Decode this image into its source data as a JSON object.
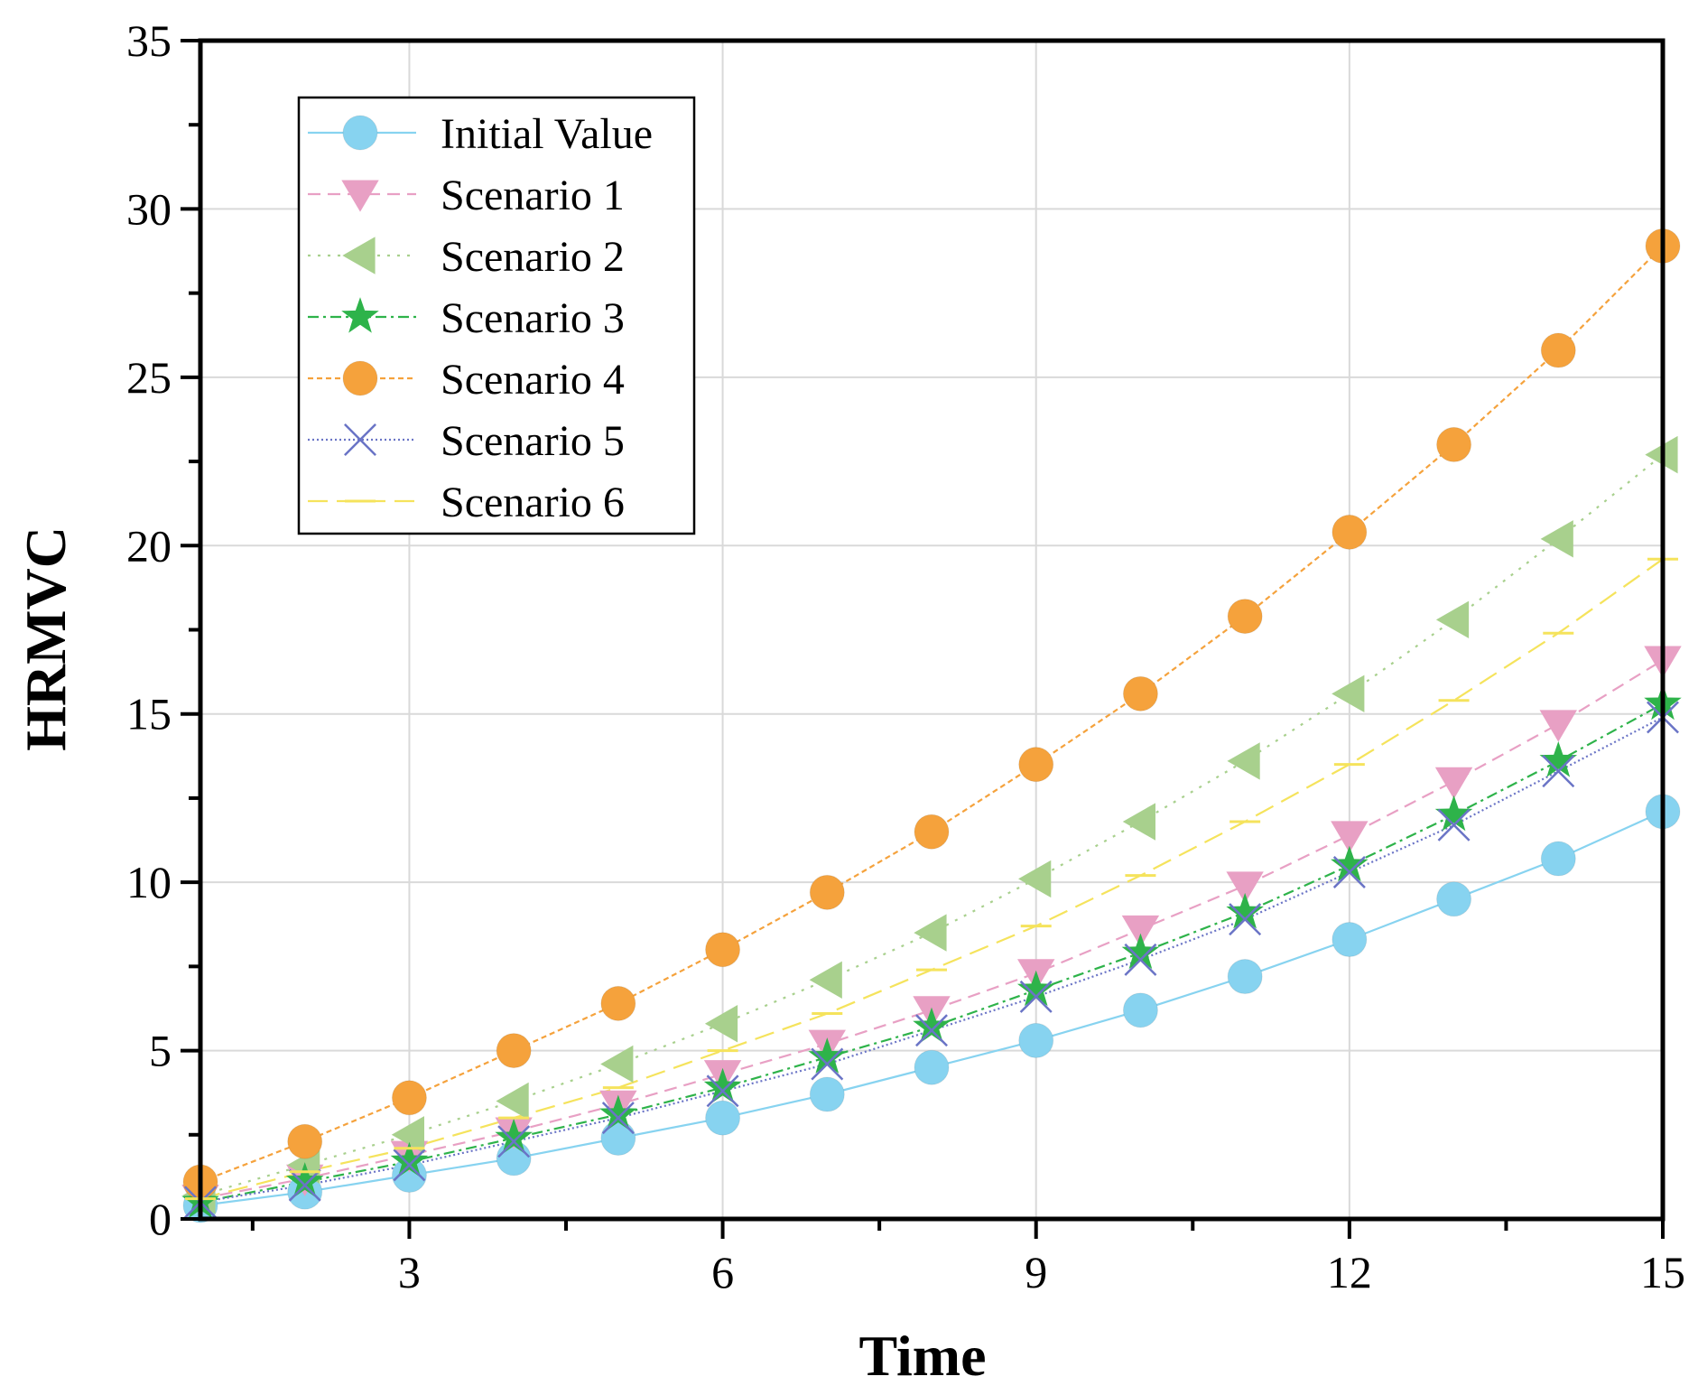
{
  "chart_data": {
    "type": "line",
    "title": "",
    "xlabel": "Time",
    "ylabel": "HRMVC",
    "xlim": [
      1,
      15
    ],
    "ylim": [
      0,
      35
    ],
    "xticks": [
      3,
      6,
      9,
      12,
      15
    ],
    "yticks": [
      0,
      5,
      10,
      15,
      20,
      25,
      30,
      35
    ],
    "grid": true,
    "legend_position": "top-left",
    "x": [
      1,
      2,
      3,
      4,
      5,
      6,
      7,
      8,
      9,
      10,
      11,
      12,
      13,
      14,
      15
    ],
    "series": [
      {
        "name": "Initial Value",
        "color": "#87d3f0",
        "marker": "circle",
        "line_style": "solid",
        "values": [
          0.4,
          0.8,
          1.3,
          1.8,
          2.4,
          3.0,
          3.7,
          4.5,
          5.3,
          6.2,
          7.2,
          8.3,
          9.5,
          10.7,
          12.1
        ]
      },
      {
        "name": "Scenario 1",
        "color": "#e8a0c4",
        "marker": "triangle-down",
        "line_style": "dashed",
        "values": [
          0.6,
          1.2,
          1.9,
          2.6,
          3.4,
          4.3,
          5.2,
          6.2,
          7.3,
          8.6,
          9.9,
          11.4,
          13.0,
          14.7,
          16.6
        ]
      },
      {
        "name": "Scenario 2",
        "color": "#a8d08d",
        "marker": "triangle-left",
        "line_style": "dotted",
        "values": [
          0.7,
          1.6,
          2.5,
          3.5,
          4.6,
          5.8,
          7.1,
          8.5,
          10.1,
          11.8,
          13.6,
          15.6,
          17.8,
          20.2,
          22.7
        ]
      },
      {
        "name": "Scenario 3",
        "color": "#2eb34a",
        "marker": "star",
        "line_style": "dashdot",
        "values": [
          0.5,
          1.1,
          1.7,
          2.4,
          3.1,
          3.9,
          4.8,
          5.7,
          6.8,
          7.9,
          9.1,
          10.5,
          12.0,
          13.6,
          15.3
        ]
      },
      {
        "name": "Scenario 4",
        "color": "#f5a23c",
        "marker": "circle",
        "line_style": "short-dash",
        "values": [
          1.1,
          2.3,
          3.6,
          5.0,
          6.4,
          8.0,
          9.7,
          11.5,
          13.5,
          15.6,
          17.9,
          20.4,
          23.0,
          25.8,
          28.9
        ]
      },
      {
        "name": "Scenario 5",
        "color": "#6a74c6",
        "marker": "x",
        "line_style": "dense-dot",
        "values": [
          0.5,
          1.0,
          1.6,
          2.3,
          3.0,
          3.8,
          4.6,
          5.6,
          6.6,
          7.7,
          8.9,
          10.3,
          11.7,
          13.3,
          14.9
        ]
      },
      {
        "name": "Scenario 6",
        "color": "#f5e35c",
        "marker": "dash",
        "line_style": "long-dash",
        "values": [
          0.6,
          1.4,
          2.1,
          3.0,
          3.9,
          5.0,
          6.1,
          7.4,
          8.7,
          10.2,
          11.8,
          13.5,
          15.4,
          17.4,
          19.6
        ]
      }
    ]
  }
}
